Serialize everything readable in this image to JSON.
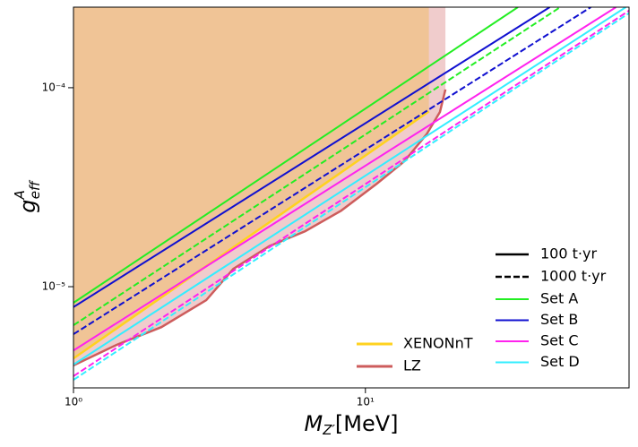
{
  "chart_data": {
    "type": "loglog-lines",
    "xlabel": {
      "main": "M",
      "sub": "Z′",
      "unit": "[MeV]"
    },
    "ylabel": {
      "main": "g",
      "sup": "A",
      "sub": "eff"
    },
    "xscale": "log",
    "yscale": "log",
    "xlim": [
      1,
      80
    ],
    "ylim": [
      3.1e-06,
      0.000254
    ],
    "xticks": [
      {
        "value": 1,
        "label": "10⁰"
      },
      {
        "value": 10,
        "label": "10¹"
      }
    ],
    "yticks": [
      {
        "value": 1e-05,
        "label": "10⁻⁵"
      },
      {
        "value": 0.0001,
        "label": "10⁻⁴"
      }
    ],
    "line_styles": [
      {
        "label": "100 t·yr",
        "dashed": false
      },
      {
        "label": "1000 t·yr",
        "dashed": true
      }
    ],
    "sets": [
      {
        "name": "Set A",
        "color": "#22ee22",
        "lines": [
          {
            "x": [
              1,
              33.3
            ],
            "values": [
              8.3e-06,
              0.000254
            ]
          },
          {
            "x": [
              1,
              46.5
            ],
            "values": [
              6.4e-06,
              0.000254
            ]
          }
        ]
      },
      {
        "name": "Set B",
        "color": "#1010d0",
        "lines": [
          {
            "x": [
              1,
              42.8
            ],
            "values": [
              7.9e-06,
              0.000254
            ]
          },
          {
            "x": [
              1,
              59.2
            ],
            "values": [
              5.77e-06,
              0.000254
            ]
          }
        ]
      },
      {
        "name": "Set C",
        "color": "#ff22ee",
        "lines": [
          {
            "x": [
              1,
              72.2
            ],
            "values": [
              4.78e-06,
              0.000254
            ]
          },
          {
            "x": [
              1,
              80
            ],
            "values": [
              3.55e-06,
              0.000244
            ]
          }
        ]
      },
      {
        "name": "Set D",
        "color": "#33eeff",
        "lines": [
          {
            "x": [
              1,
              78
            ],
            "values": [
              4.06e-06,
              0.000254
            ]
          },
          {
            "x": [
              1,
              80
            ],
            "values": [
              3.4e-06,
              0.000237
            ]
          }
        ]
      }
    ],
    "bounds": [
      {
        "name": "LZ",
        "color": "#cd5c5c",
        "fill": "#f0cccc",
        "x": [
          1,
          1.405,
          2.0,
          2.85,
          3.53,
          4.69,
          6.22,
          8.26,
          10.96,
          13.6,
          16.2,
          18.0,
          18.8
        ],
        "values": [
          4.02e-06,
          5.1e-06,
          6.26e-06,
          8.56e-06,
          1.23e-05,
          1.6e-05,
          1.9e-05,
          2.41e-05,
          3.3e-05,
          4.27e-05,
          5.83e-05,
          7.55e-05,
          9.8e-05
        ]
      },
      {
        "name": "XENONnT",
        "color": "#ffd21f",
        "fill": "#f0c496",
        "x": [
          1,
          16.5
        ],
        "values": [
          4.36e-06,
          7.6e-05
        ]
      }
    ]
  }
}
